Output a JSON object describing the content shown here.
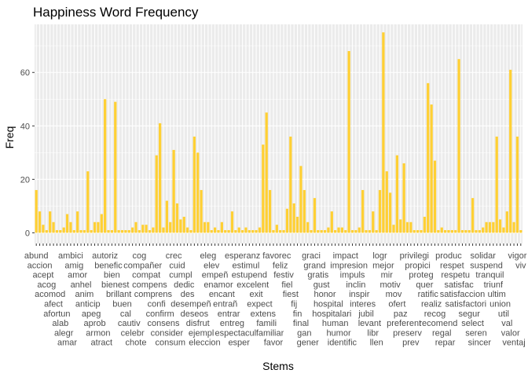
{
  "chart_data": {
    "type": "bar",
    "title": "Happiness Word Frequency",
    "xlabel": "Stems",
    "ylabel": "Freq",
    "ylim": [
      -4,
      78
    ],
    "yticks": [
      0,
      20,
      40,
      60
    ],
    "grid": true,
    "bar_color": "#FFD034",
    "panel_color": "#EBEBEB",
    "grid_color": "#FFFFFF",
    "categories": [
      "abund",
      "accion",
      "acept",
      "acog",
      "acomod",
      "afect",
      "afortun",
      "alab",
      "alegr",
      "amar",
      "ambici",
      "amig",
      "amor",
      "anhel",
      "anim",
      "anticip",
      "apeg",
      "aprob",
      "armon",
      "atract",
      "autoriz",
      "benefic",
      "bien",
      "bienest",
      "brillant",
      "buen",
      "cal",
      "cautiv",
      "celebr",
      "chote",
      "cog",
      "compañer",
      "compat",
      "compens",
      "comprens",
      "confi",
      "confirm",
      "consens",
      "consider",
      "consum",
      "crec",
      "cuid",
      "cumpl",
      "dedic",
      "des",
      "desempeñ",
      "deseos",
      "disfrut",
      "ejempl",
      "eleccion",
      "eleg",
      "elev",
      "empeñ",
      "enamor",
      "encant",
      "entrañ",
      "entrar",
      "entreg",
      "espectacul",
      "esper",
      "esperanz",
      "estimul",
      "estupend",
      "excelent",
      "exit",
      "expect",
      "extens",
      "famili",
      "familiar",
      "favor",
      "favorec",
      "feliz",
      "festiv",
      "fiel",
      "fiest",
      "fij",
      "fin",
      "final",
      "gan",
      "gener",
      "graci",
      "grand",
      "gratis",
      "gust",
      "honor",
      "hospital",
      "hospitalari",
      "human",
      "humor",
      "identific",
      "impact",
      "impresion",
      "impuls",
      "inclin",
      "inspir",
      "interes",
      "jubil",
      "levant",
      "libr",
      "llen",
      "logr",
      "mejor",
      "mir",
      "motiv",
      "mov",
      "ofert",
      "paz",
      "preferent",
      "preserv",
      "prev",
      "privilegi",
      "propici",
      "proteg",
      "quer",
      "ratific",
      "realiz",
      "recog",
      "recomend",
      "regal",
      "repar",
      "produc",
      "respet",
      "respetu",
      "satisfac",
      "satisfaccion",
      "satisfactori",
      "segur",
      "select",
      "seren",
      "sincer",
      "solidar",
      "suspend",
      "tranquil",
      "triunf",
      "ultim",
      "union",
      "util",
      "val",
      "valor",
      "ventaj",
      "vigor",
      "viv"
    ],
    "tick_labels_shown": [
      "abund",
      "accion",
      "acept",
      "acog",
      "acomod",
      "afect",
      "afortun",
      "alab",
      "alegr",
      "amar",
      "ambici",
      "amig",
      "amor",
      "anhel",
      "anim",
      "anticip",
      "apeg",
      "aprob",
      "armon",
      "atract",
      "autoriz",
      "benefic",
      "bien",
      "bienest",
      "brillant",
      "buen",
      "cal",
      "cautiv",
      "celebr",
      "chote",
      "cog",
      "compañer",
      "compat",
      "compens",
      "comprens",
      "confi",
      "confirm",
      "consens",
      "consider",
      "consum",
      "crec",
      "cuid",
      "cumpl",
      "dedic",
      "des",
      "desempeñ",
      "deseos",
      "disfrut",
      "ejempl",
      "eleccion",
      "eleg",
      "elev",
      "empeñ",
      "enamor",
      "encant",
      "entrañ",
      "entrar",
      "entreg",
      "espectacul",
      "esper",
      "esperanz",
      "estimul",
      "estupend",
      "excelent",
      "exit",
      "expect",
      "extens",
      "famili",
      "familiar",
      "favor",
      "favorec",
      "feliz",
      "festiv",
      "fiel",
      "fiest",
      "fij",
      "fin",
      "final",
      "gan",
      "gener",
      "graci",
      "grand",
      "gratis",
      "gust",
      "honor",
      "hospital",
      "hospitalari",
      "human",
      "humor",
      "identific",
      "impact",
      "impresion",
      "impuls",
      "inclin",
      "inspir",
      "interes",
      "jubil",
      "levant",
      "libr",
      "llen",
      "logr",
      "mejor",
      "mir",
      "motiv",
      "mov",
      "ofert",
      "paz",
      "preferent",
      "preserv",
      "prev",
      "privilegi",
      "propici",
      "proteg",
      "quer",
      "ratific",
      "realiz",
      "recog",
      "recomend",
      "regal",
      "repar",
      "produc",
      "respet",
      "respetu",
      "satisfac",
      "satisfaccion",
      "satisfactori",
      "segur",
      "select",
      "seren",
      "sincer",
      "solidar",
      "suspend",
      "tranquil",
      "triunf",
      "ultim",
      "union",
      "util",
      "val",
      "valor",
      "ventaj",
      "vigor",
      "viv"
    ],
    "values": [
      16,
      8,
      3,
      1,
      8,
      4,
      1,
      1,
      2,
      7,
      4,
      1,
      8,
      1,
      1,
      23,
      1,
      4,
      4,
      7,
      50,
      1,
      1,
      49,
      1,
      1,
      1,
      1,
      2,
      4,
      1,
      3,
      3,
      1,
      2,
      29,
      41,
      2,
      12,
      4,
      31,
      11,
      5,
      6,
      2,
      1,
      36,
      30,
      16,
      4,
      4,
      1,
      2,
      1,
      4,
      1,
      1,
      8,
      1,
      2,
      1,
      2,
      1,
      1,
      1,
      2,
      33,
      45,
      16,
      1,
      3,
      1,
      1,
      9,
      36,
      11,
      6,
      25,
      16,
      4,
      1,
      13,
      1,
      1,
      1,
      2,
      8,
      1,
      2,
      2,
      1,
      68,
      1,
      1,
      2,
      16,
      1,
      1,
      8,
      1,
      16,
      75,
      23,
      15,
      3,
      29,
      5,
      26,
      4,
      4,
      1,
      1,
      1,
      6,
      56,
      48,
      27,
      1,
      2,
      1,
      1,
      1,
      1,
      65,
      1,
      1,
      1,
      13,
      1,
      1,
      2,
      4,
      4,
      4,
      36,
      5,
      2,
      8,
      61,
      4,
      36,
      1
    ]
  }
}
